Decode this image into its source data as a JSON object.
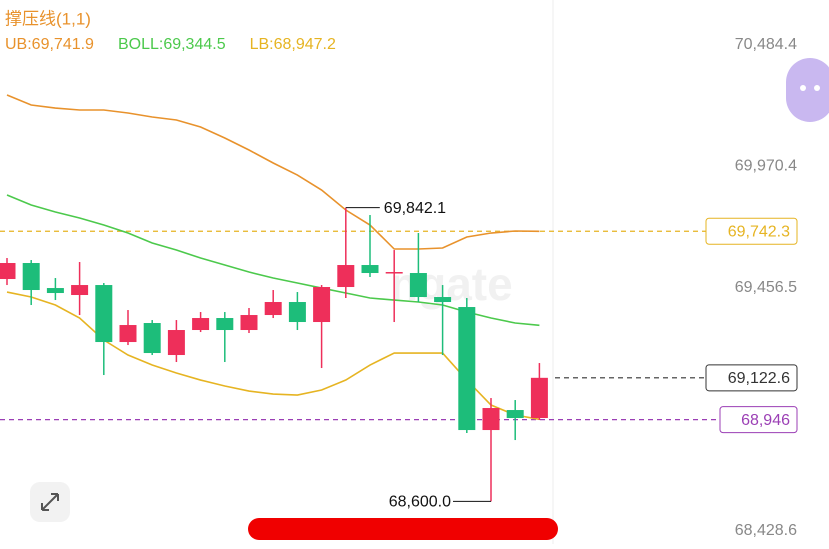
{
  "chart_data": {
    "type": "candlestick",
    "title": "撑压线(1,1)",
    "categories": [
      null,
      null,
      null,
      null,
      null,
      null,
      null,
      null,
      null,
      null,
      null,
      null,
      null,
      null,
      null,
      null,
      null,
      null,
      null,
      null,
      null,
      null,
      null
    ],
    "candles": [
      {
        "open": 69540.3,
        "high": 69629.1,
        "low": 69514.9,
        "close": 69608.0
      },
      {
        "open": 69608.0,
        "high": 69620.6,
        "low": 69430.4,
        "close": 69493.8
      },
      {
        "open": 69502.2,
        "high": 69544.5,
        "low": 69451.5,
        "close": 69481.1
      },
      {
        "open": 69472.7,
        "high": 69612.2,
        "low": 69388.1,
        "close": 69514.9
      },
      {
        "open": 69514.9,
        "high": 69523.4,
        "low": 69134.4,
        "close": 69273.9
      },
      {
        "open": 69273.9,
        "high": 69409.2,
        "low": 69261.2,
        "close": 69345.8
      },
      {
        "open": 69354.3,
        "high": 69366.9,
        "low": 69219.0,
        "close": 69227.4
      },
      {
        "open": 69219.0,
        "high": 69366.9,
        "low": 69189.4,
        "close": 69324.7
      },
      {
        "open": 69324.7,
        "high": 69400.8,
        "low": 69316.2,
        "close": 69375.4
      },
      {
        "open": 69375.4,
        "high": 69400.8,
        "low": 69189.4,
        "close": 69324.7
      },
      {
        "open": 69324.7,
        "high": 69417.7,
        "low": 69312.0,
        "close": 69388.1
      },
      {
        "open": 69388.1,
        "high": 69493.8,
        "low": 69375.4,
        "close": 69443.1
      },
      {
        "open": 69443.1,
        "high": 69485.3,
        "low": 69324.7,
        "close": 69358.5
      },
      {
        "open": 69358.5,
        "high": 69514.9,
        "low": 69164.0,
        "close": 69506.5
      },
      {
        "open": 69506.5,
        "high": 69842.1,
        "low": 69460.0,
        "close": 69599.5
      },
      {
        "open": 69599.5,
        "high": 69810.9,
        "low": 69548.8,
        "close": 69565.7
      },
      {
        "open": 69565.7,
        "high": 69662.9,
        "low": 69358.5,
        "close": 69569.9
      },
      {
        "open": 69565.7,
        "high": 69734.8,
        "low": 69443.1,
        "close": 69464.2
      },
      {
        "open": 69464.2,
        "high": 69514.9,
        "low": 69219.0,
        "close": 69443.1
      },
      {
        "open": 69421.9,
        "high": 69460.0,
        "low": 68889.1,
        "close": 68901.8
      },
      {
        "open": 68901.8,
        "high": 69037.1,
        "low": 68600.0,
        "close": 68994.9
      },
      {
        "open": 68986.4,
        "high": 69028.7,
        "low": 68859.5,
        "close": 68952.6
      },
      {
        "open": 68952.6,
        "high": 69185.1,
        "low": 68944.1,
        "close": 69122.6
      }
    ],
    "up_color": "#ee2f5a",
    "down_color": "#1dbd7a",
    "series": [
      {
        "name": "UB:69,741.9",
        "color": "#e8922c",
        "values": [
          70318.3,
          70276.0,
          70263.3,
          70254.9,
          70254.9,
          70242.2,
          70225.3,
          70212.6,
          70183.0,
          70136.5,
          70085.8,
          70030.8,
          69980.0,
          69916.6,
          69832.1,
          69768.6,
          69667.2,
          69667.2,
          69671.4,
          69717.9,
          69734.8,
          69743.3,
          69741.9
        ]
      },
      {
        "name": "BOLL:69,344.5",
        "color": "#4cc94c",
        "values": [
          69895.5,
          69853.2,
          69823.6,
          69798.2,
          69768.6,
          69734.8,
          69692.5,
          69662.9,
          69629.1,
          69599.5,
          69569.9,
          69544.5,
          69523.4,
          69502.2,
          69481.1,
          69460.0,
          69451.5,
          69443.1,
          69430.4,
          69400.8,
          69375.4,
          69354.3,
          69344.5
        ]
      },
      {
        "name": "LB:68,947.2",
        "color": "#e6b422",
        "values": [
          69485.3,
          69464.2,
          69430.4,
          69375.4,
          69282.4,
          69219.0,
          69176.7,
          69142.8,
          69113.2,
          69087.9,
          69066.7,
          69054.1,
          69049.8,
          69071.0,
          69113.2,
          69176.7,
          69227.4,
          69227.4,
          69227.4,
          69113.2,
          69007.5,
          68965.3,
          68947.2
        ]
      }
    ],
    "ylim": [
      68420,
      70720
    ],
    "yticks": [
      {
        "value": 70484.4,
        "label": "70,484.4"
      },
      {
        "value": 69970.4,
        "label": "69,970.4"
      },
      {
        "value": 69456.5,
        "label": "69,456.5"
      },
      {
        "value": 68428.6,
        "label": "68,428.6"
      }
    ],
    "markers": [
      {
        "value": 69742.3,
        "label": "69,742.3",
        "color": "#e6b422"
      },
      {
        "value": 69122.6,
        "label": "69,122.6",
        "color": "#333333"
      },
      {
        "value": 68946,
        "label": "68,946",
        "color": "#9b3fb5"
      }
    ],
    "high_label": "69,842.1",
    "low_label": "68,600.0"
  }
}
